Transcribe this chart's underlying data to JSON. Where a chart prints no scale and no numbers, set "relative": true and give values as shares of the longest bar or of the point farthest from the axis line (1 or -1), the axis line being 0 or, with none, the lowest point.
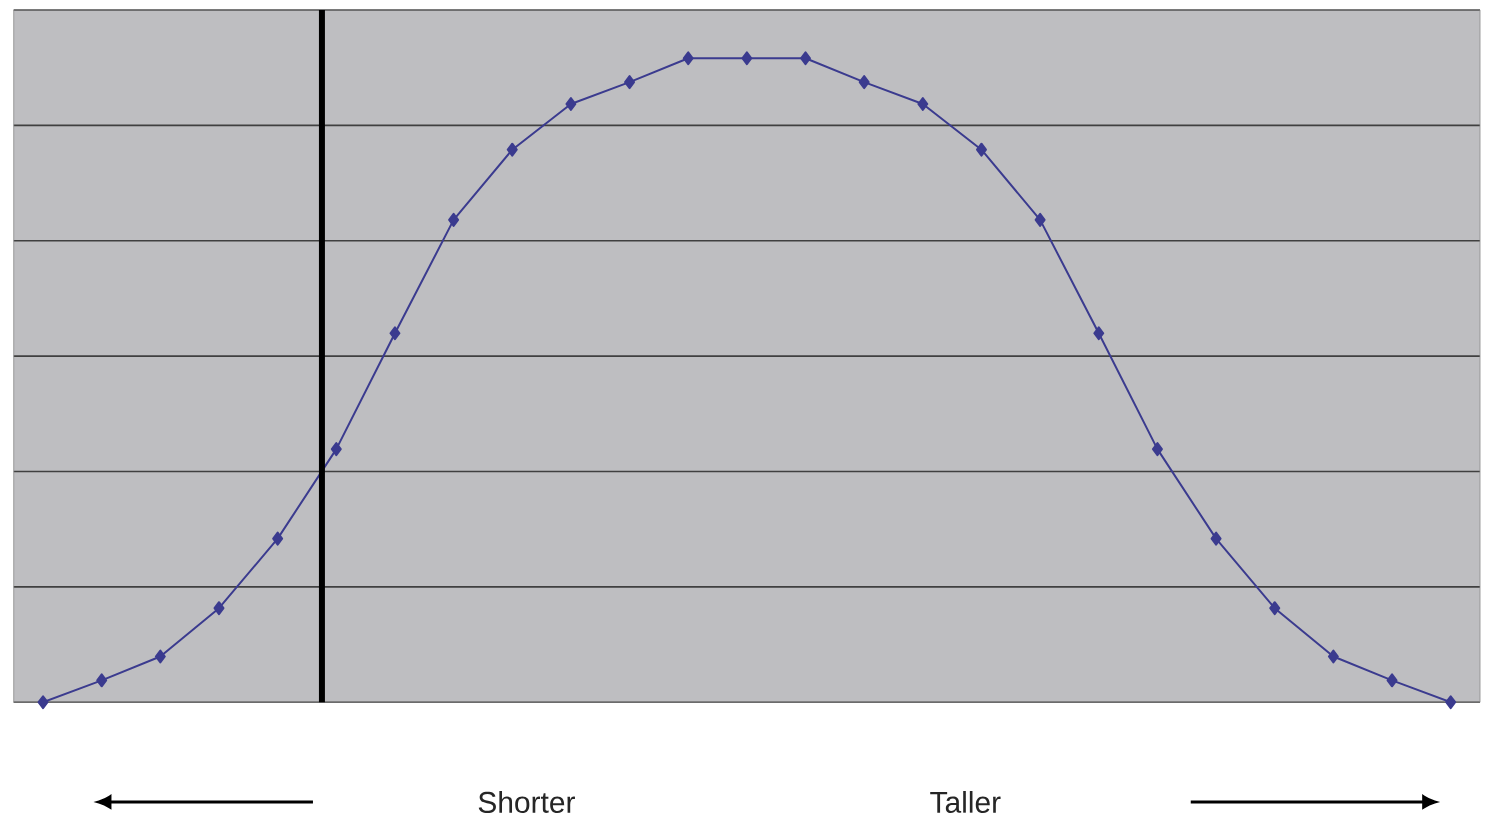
{
  "chart_data": {
    "type": "line",
    "relative": true,
    "categories": [
      null,
      null,
      null,
      null,
      null,
      null,
      null,
      null,
      null,
      null,
      null,
      null,
      null,
      null,
      null,
      null,
      null,
      null,
      null,
      null,
      null,
      null,
      null,
      null,
      null
    ],
    "series": [
      {
        "color": "#3b3b8f",
        "values": [
          0,
          0.034,
          0.071,
          0.146,
          0.254,
          0.393,
          0.573,
          0.749,
          0.858,
          0.929,
          0.963,
          1,
          1,
          1,
          0.963,
          0.929,
          0.858,
          0.749,
          0.573,
          0.393,
          0.254,
          0.146,
          0.071,
          0.034,
          0
        ]
      }
    ],
    "marker": "diamond",
    "line_style": "solid",
    "grid": "y",
    "annotations": [
      "Shorter",
      "Taller"
    ]
  }
}
